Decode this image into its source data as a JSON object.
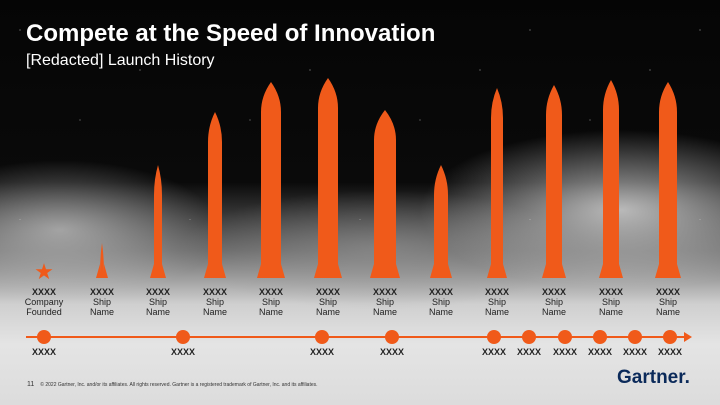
{
  "title": "Compete at the Speed of Innovation",
  "subtitle": "[Redacted] Launch History",
  "accent": "#f05a1a",
  "columns": [
    {
      "year": "XXXX",
      "line1": "Company",
      "line2": "Founded",
      "icon": "star"
    },
    {
      "year": "XXXX",
      "line1": "Ship",
      "line2": "Name",
      "icon": "rocket"
    },
    {
      "year": "XXXX",
      "line1": "Ship",
      "line2": "Name",
      "icon": "rocket"
    },
    {
      "year": "XXXX",
      "line1": "Ship",
      "line2": "Name",
      "icon": "rocket"
    },
    {
      "year": "XXXX",
      "line1": "Ship",
      "line2": "Name",
      "icon": "rocket"
    },
    {
      "year": "XXXX",
      "line1": "Ship",
      "line2": "Name",
      "icon": "rocket"
    },
    {
      "year": "XXXX",
      "line1": "Ship",
      "line2": "Name",
      "icon": "rocket"
    },
    {
      "year": "XXXX",
      "line1": "Ship",
      "line2": "Name",
      "icon": "rocket"
    },
    {
      "year": "XXXX",
      "line1": "Ship",
      "line2": "Name",
      "icon": "rocket"
    },
    {
      "year": "XXXX",
      "line1": "Ship",
      "line2": "Name",
      "icon": "rocket"
    },
    {
      "year": "XXXX",
      "line1": "Ship",
      "line2": "Name",
      "icon": "rocket"
    },
    {
      "year": "XXXX",
      "line1": "Ship",
      "line2": "Name",
      "icon": "rocket"
    }
  ],
  "timeline": [
    "XXXX",
    "XXXX",
    "XXXX",
    "XXXX",
    "XXXX",
    "XXXX",
    "XXXX",
    "XXXX",
    "XXXX",
    "XXXX"
  ],
  "footer": {
    "page": "11",
    "copyright": "© 2022 Gartner, Inc. and/or its affiliates. All rights reserved. Gartner is a registered trademark of Gartner, Inc. and its affiliates."
  },
  "logo": "Gartner."
}
